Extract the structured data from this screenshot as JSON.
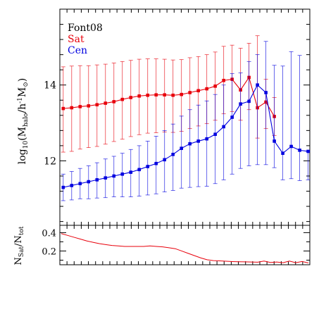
{
  "chart_data": [
    {
      "type": "line",
      "legend": [
        {
          "label": "Font08",
          "color": "#000000"
        },
        {
          "label": "Sat",
          "color": "#e8000b"
        },
        {
          "label": "Cen",
          "color": "#0000e0"
        }
      ],
      "legend_position": "top-left",
      "ylabel": {
        "prefix": "log",
        "sub1": "10",
        "mid": "(M",
        "sub2": "halo",
        "mid2": "/h",
        "sup": "-1",
        "mid3": "M",
        "sub3": "⊙",
        "suffix": ")"
      },
      "ylim": [
        10.3,
        16
      ],
      "yticks": [
        12,
        14
      ],
      "x": [
        1,
        2,
        3,
        4,
        5,
        6,
        7,
        8,
        9,
        10,
        11,
        12,
        13,
        14,
        15,
        16,
        17,
        18,
        19,
        20,
        21,
        22,
        23,
        24,
        25,
        26,
        27,
        28,
        29,
        30
      ],
      "series": [
        {
          "name": "Sat",
          "color": "#e8000b",
          "values": [
            13.38,
            13.4,
            13.43,
            13.45,
            13.48,
            13.52,
            13.56,
            13.62,
            13.67,
            13.71,
            13.73,
            13.74,
            13.74,
            13.73,
            13.75,
            13.8,
            13.85,
            13.9,
            13.97,
            14.12,
            14.15,
            13.87,
            14.2,
            13.4,
            13.55,
            13.17,
            null,
            null,
            null,
            null
          ],
          "err_low": [
            1.15,
            1.15,
            1.12,
            1.1,
            1.1,
            1.08,
            1.05,
            1.05,
            1.03,
            1.02,
            1.0,
            1.0,
            0.98,
            0.98,
            0.97,
            0.95,
            0.93,
            0.92,
            0.9,
            0.88,
            0.85,
            0.8,
            0.85,
            0.8,
            0.7,
            0.5,
            null,
            null,
            null,
            null
          ],
          "err_high": [
            1.1,
            1.1,
            1.08,
            1.06,
            1.05,
            1.03,
            1.02,
            1.0,
            0.98,
            0.97,
            0.96,
            0.95,
            0.94,
            0.93,
            0.92,
            0.92,
            0.9,
            0.9,
            0.9,
            0.9,
            0.9,
            1.1,
            0.9,
            1.9,
            0.6,
            0.5,
            null,
            null,
            null,
            null
          ]
        },
        {
          "name": "Cen",
          "color": "#0000e0",
          "values": [
            11.3,
            11.35,
            11.4,
            11.45,
            11.5,
            11.55,
            11.6,
            11.65,
            11.7,
            11.77,
            11.85,
            11.93,
            12.03,
            12.17,
            12.33,
            12.45,
            12.52,
            12.58,
            12.7,
            12.9,
            13.15,
            13.5,
            13.57,
            14.0,
            13.8,
            12.52,
            12.2,
            12.38,
            12.28,
            12.25
          ],
          "err_low": [
            0.35,
            0.38,
            0.4,
            0.45,
            0.48,
            0.52,
            0.55,
            0.6,
            0.65,
            0.7,
            0.75,
            0.8,
            0.85,
            0.95,
            1.05,
            1.15,
            1.2,
            1.25,
            1.3,
            1.4,
            1.5,
            1.7,
            1.7,
            2.1,
            1.9,
            0.7,
            0.7,
            0.85,
            0.8,
            0.75
          ],
          "err_high": [
            0.35,
            0.37,
            0.4,
            0.42,
            0.45,
            0.5,
            0.52,
            0.55,
            0.6,
            0.63,
            0.67,
            0.72,
            0.77,
            0.8,
            0.85,
            0.9,
            0.95,
            1.0,
            1.05,
            1.1,
            1.15,
            0.82,
            1.05,
            0.8,
            1.35,
            2.0,
            2.3,
            2.5,
            2.5,
            0.0
          ]
        }
      ]
    },
    {
      "type": "line",
      "ylabel": {
        "prefix": "N",
        "sub1": "Sat",
        "mid": "/N",
        "sub2": "tot"
      },
      "ylim": [
        0.05,
        0.48
      ],
      "yticks": [
        0.2,
        0.4
      ],
      "yticklabels": [
        "0.2",
        "0.4"
      ],
      "series": [
        {
          "name": "",
          "color": "#e8000b",
          "values": [
            0.39,
            0.37,
            0.35,
            0.33,
            0.31,
            0.295,
            0.28,
            0.27,
            0.26,
            0.255,
            0.25,
            0.25,
            0.25,
            0.25,
            0.255,
            0.25,
            0.245,
            0.235,
            0.225,
            0.2,
            0.175,
            0.15,
            0.125,
            0.105,
            0.095,
            0.092,
            0.088,
            0.085,
            0.083,
            0.082,
            0.08,
            0.078,
            0.09,
            0.075,
            0.08,
            0.072,
            0.09,
            0.072,
            0.085,
            0.07
          ]
        }
      ]
    }
  ]
}
